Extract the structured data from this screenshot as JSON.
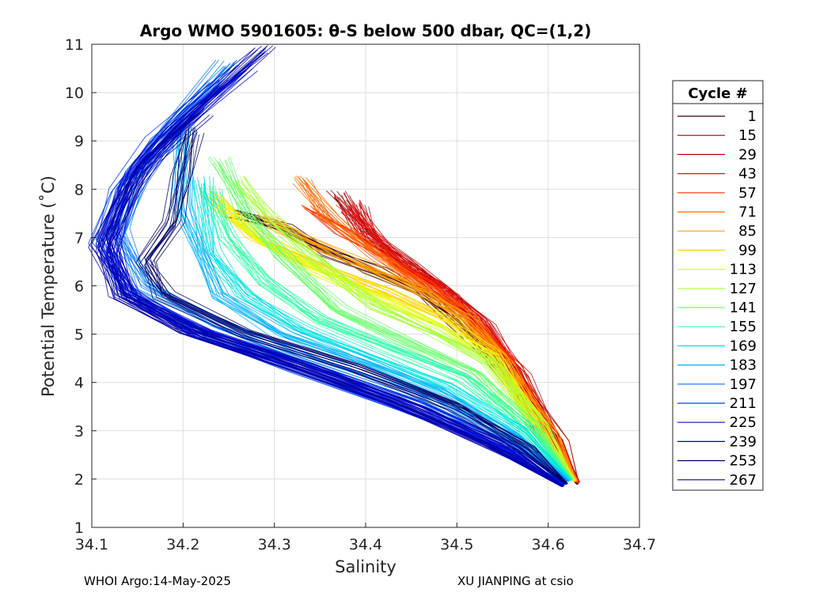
{
  "chart_data": {
    "type": "line",
    "title": "Argo WMO 5901605: θ-S below 500 dbar,  QC=(1,2)",
    "xlabel": "Salinity",
    "ylabel": "Potential Temperature (˚C)",
    "xlim": [
      34.1,
      34.7
    ],
    "ylim": [
      1,
      11
    ],
    "xticks": [
      "34.1",
      "34.2",
      "34.3",
      "34.4",
      "34.5",
      "34.6",
      "34.7"
    ],
    "yticks": [
      "1",
      "2",
      "3",
      "4",
      "5",
      "6",
      "7",
      "8",
      "9",
      "10",
      "11"
    ],
    "grid": true,
    "legend": {
      "title": "Cycle #",
      "placement": "right",
      "entries": [
        {
          "label": "1",
          "color": "#3a0000"
        },
        {
          "label": "15",
          "color": "#9c0000"
        },
        {
          "label": "29",
          "color": "#c80000"
        },
        {
          "label": "43",
          "color": "#e81010"
        },
        {
          "label": "57",
          "color": "#ff3000"
        },
        {
          "label": "71",
          "color": "#ff6a00"
        },
        {
          "label": "85",
          "color": "#ffa000"
        },
        {
          "label": "99",
          "color": "#ffd400"
        },
        {
          "label": "113",
          "color": "#e6ff10"
        },
        {
          "label": "127",
          "color": "#a8ff40"
        },
        {
          "label": "141",
          "color": "#6cff70"
        },
        {
          "label": "155",
          "color": "#30ffa8"
        },
        {
          "label": "169",
          "color": "#00e4e0"
        },
        {
          "label": "183",
          "color": "#00b0ff"
        },
        {
          "label": "197",
          "color": "#0078ff"
        },
        {
          "label": "211",
          "color": "#0040ff"
        },
        {
          "label": "225",
          "color": "#0010e0"
        },
        {
          "label": "239",
          "color": "#0000a8"
        },
        {
          "label": "253",
          "color": "#00006a"
        },
        {
          "label": "267",
          "color": "#0000b4"
        }
      ]
    },
    "series": [
      {
        "color": "#3a0000",
        "x": [
          34.26,
          34.31,
          34.36,
          34.41,
          34.46,
          34.5,
          34.55,
          34.6,
          34.632
        ],
        "y": [
          7.5,
          7.2,
          6.7,
          6.3,
          5.9,
          5.3,
          4.3,
          2.9,
          1.9
        ]
      },
      {
        "color": "#9c0000",
        "x": [
          34.37,
          34.4,
          34.44,
          34.48,
          34.52,
          34.56,
          34.61,
          34.632
        ],
        "y": [
          7.9,
          7.1,
          6.5,
          6.0,
          5.3,
          4.3,
          2.8,
          1.95
        ]
      },
      {
        "color": "#c80000",
        "x": [
          34.39,
          34.41,
          34.45,
          34.49,
          34.53,
          34.57,
          34.61,
          34.633
        ],
        "y": [
          7.7,
          7.0,
          6.4,
          5.9,
          5.2,
          4.2,
          2.8,
          1.92
        ]
      },
      {
        "color": "#e81010",
        "x": [
          34.38,
          34.41,
          34.44,
          34.48,
          34.52,
          34.56,
          34.6,
          34.631
        ],
        "y": [
          7.6,
          7.0,
          6.4,
          6.0,
          5.3,
          4.4,
          2.9,
          1.94
        ]
      },
      {
        "color": "#ff3000",
        "x": [
          34.34,
          34.38,
          34.42,
          34.47,
          34.51,
          34.56,
          34.6,
          34.632
        ],
        "y": [
          7.6,
          7.1,
          6.6,
          6.0,
          5.4,
          4.4,
          2.9,
          1.93
        ]
      },
      {
        "color": "#ff6a00",
        "x": [
          34.33,
          34.36,
          34.41,
          34.46,
          34.51,
          34.55,
          34.6,
          34.631
        ],
        "y": [
          8.2,
          7.4,
          6.7,
          6.0,
          5.4,
          4.5,
          3.0,
          1.95
        ]
      },
      {
        "color": "#ffa000",
        "x": [
          34.29,
          34.34,
          34.4,
          34.46,
          34.51,
          34.55,
          34.6,
          34.63
        ],
        "y": [
          7.4,
          6.9,
          6.4,
          5.9,
          5.3,
          4.5,
          3.0,
          1.96
        ]
      },
      {
        "color": "#ffd400",
        "x": [
          34.23,
          34.28,
          34.35,
          34.42,
          34.49,
          34.54,
          34.59,
          34.629
        ],
        "y": [
          7.9,
          7.0,
          6.4,
          5.9,
          5.3,
          4.6,
          3.1,
          1.96
        ]
      },
      {
        "color": "#e6ff10",
        "x": [
          34.24,
          34.29,
          34.35,
          34.42,
          34.48,
          34.54,
          34.59,
          34.628
        ],
        "y": [
          7.7,
          6.9,
          6.3,
          5.7,
          5.2,
          4.5,
          3.1,
          1.97
        ]
      },
      {
        "color": "#a8ff40",
        "x": [
          34.26,
          34.3,
          34.35,
          34.41,
          34.48,
          34.54,
          34.59,
          34.627
        ],
        "y": [
          8.2,
          7.3,
          6.5,
          5.6,
          5.0,
          4.4,
          3.1,
          1.97
        ]
      },
      {
        "color": "#6cff70",
        "x": [
          34.24,
          34.27,
          34.31,
          34.37,
          34.45,
          34.52,
          34.58,
          34.626
        ],
        "y": [
          8.6,
          7.5,
          6.6,
          5.5,
          4.8,
          4.2,
          3.1,
          1.98
        ]
      },
      {
        "color": "#30ffa8",
        "x": [
          34.23,
          34.25,
          34.29,
          34.35,
          34.43,
          34.51,
          34.58,
          34.625
        ],
        "y": [
          8.0,
          7.0,
          6.1,
          5.3,
          4.7,
          4.1,
          3.0,
          1.98
        ]
      },
      {
        "color": "#00e4e0",
        "x": [
          34.22,
          34.23,
          34.27,
          34.33,
          34.41,
          34.49,
          34.57,
          34.624
        ],
        "y": [
          8.2,
          6.7,
          5.8,
          5.1,
          4.5,
          3.9,
          3.0,
          1.98
        ]
      },
      {
        "color": "#00b0ff",
        "x": [
          34.2,
          34.2,
          34.24,
          34.31,
          34.4,
          34.48,
          34.56,
          34.622
        ],
        "y": [
          9.4,
          7.6,
          5.8,
          5.0,
          4.4,
          3.8,
          2.9,
          1.96
        ]
      },
      {
        "color": "#0078ff",
        "x": [
          34.25,
          34.19,
          34.15,
          34.13,
          34.16,
          34.24,
          34.35,
          34.46,
          34.56,
          34.62
        ],
        "y": [
          10.6,
          9.3,
          8.2,
          7.1,
          6.0,
          5.2,
          4.4,
          3.7,
          2.8,
          1.95
        ]
      },
      {
        "color": "#0040ff",
        "x": [
          34.24,
          34.17,
          34.13,
          34.11,
          34.14,
          34.21,
          34.32,
          34.44,
          34.55,
          34.618
        ],
        "y": [
          10.2,
          9.0,
          8.0,
          6.9,
          5.9,
          5.1,
          4.3,
          3.5,
          2.7,
          1.9
        ]
      },
      {
        "color": "#0010e0",
        "x": [
          34.27,
          34.19,
          34.14,
          34.12,
          34.15,
          34.23,
          34.34,
          34.46,
          34.56,
          34.617
        ],
        "y": [
          10.5,
          9.2,
          8.1,
          6.6,
          5.7,
          5.0,
          4.3,
          3.5,
          2.6,
          1.88
        ]
      },
      {
        "color": "#0000a8",
        "x": [
          34.22,
          34.16,
          34.13,
          34.11,
          34.13,
          34.2,
          34.31,
          34.43,
          34.54,
          34.615
        ],
        "y": [
          9.6,
          8.6,
          7.6,
          6.8,
          5.8,
          5.1,
          4.4,
          3.6,
          2.7,
          1.86
        ]
      },
      {
        "color": "#00006a",
        "x": [
          34.21,
          34.2,
          34.19,
          34.16,
          34.18,
          34.27,
          34.39,
          34.5,
          34.58,
          34.62
        ],
        "y": [
          9.2,
          8.3,
          7.3,
          6.5,
          5.8,
          5.0,
          4.3,
          3.5,
          2.6,
          1.9
        ]
      },
      {
        "color": "#0000b4",
        "x": [
          34.29,
          34.21,
          34.15,
          34.12,
          34.14,
          34.22,
          34.34,
          34.46,
          34.56,
          34.616
        ],
        "y": [
          10.9,
          9.6,
          8.4,
          7.0,
          5.8,
          5.0,
          4.3,
          3.4,
          2.5,
          1.85
        ]
      }
    ]
  },
  "footer": {
    "left": "WHOI Argo:14-May-2025",
    "right": "XU JIANPING at csio"
  }
}
